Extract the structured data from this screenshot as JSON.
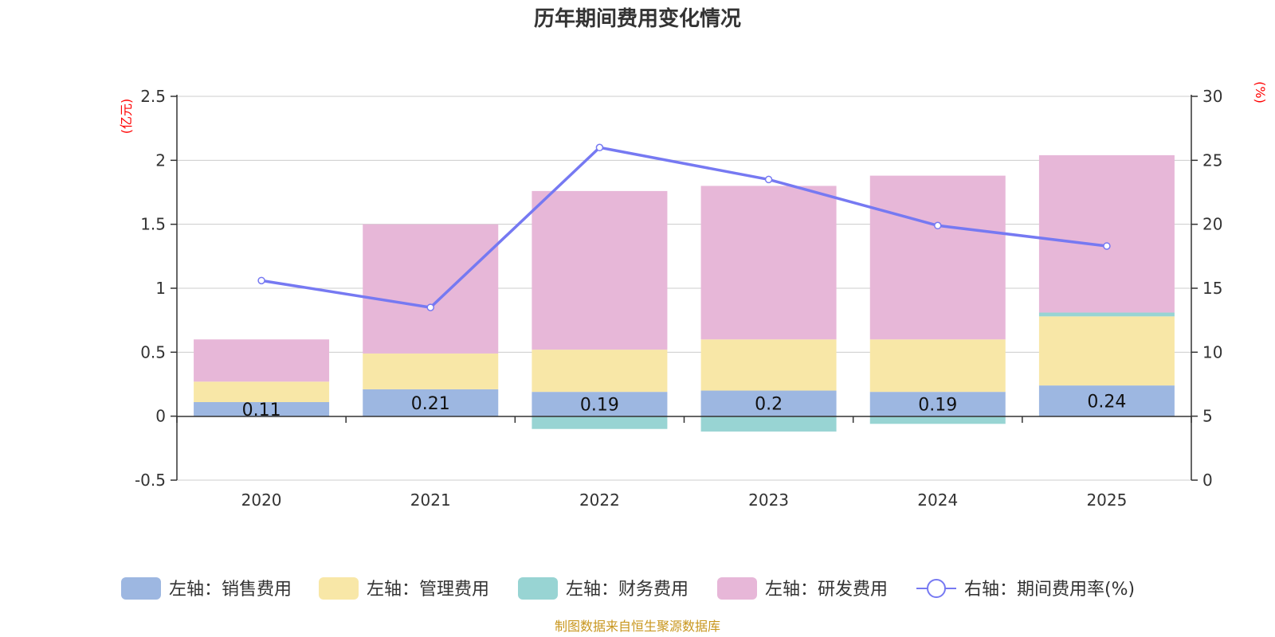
{
  "chart_data": {
    "type": "bar",
    "title": "历年期间费用变化情况",
    "categories": [
      "2020",
      "2021",
      "2022",
      "2023",
      "2024",
      "2025"
    ],
    "series": [
      {
        "name": "左轴：销售费用",
        "axis": "left",
        "type": "stacked-bar",
        "color": "#9db7e1",
        "values": [
          0.11,
          0.21,
          0.19,
          0.2,
          0.19,
          0.24
        ],
        "labels": [
          "0.11",
          "0.21",
          "0.19",
          "0.2",
          "0.19",
          "0.24"
        ]
      },
      {
        "name": "左轴：管理费用",
        "axis": "left",
        "type": "stacked-bar",
        "color": "#f8e7a7",
        "values": [
          0.16,
          0.28,
          0.33,
          0.4,
          0.41,
          0.54
        ]
      },
      {
        "name": "左轴：财务费用",
        "axis": "left",
        "type": "stacked-bar",
        "color": "#98d4d3",
        "values": [
          0.0,
          0.0,
          -0.1,
          -0.12,
          -0.06,
          0.03
        ]
      },
      {
        "name": "左轴：研发费用",
        "axis": "left",
        "type": "stacked-bar",
        "color": "#e7b7d8",
        "values": [
          0.33,
          1.01,
          1.24,
          1.2,
          1.28,
          1.23
        ]
      },
      {
        "name": "右轴：期间费用率(%)",
        "axis": "right",
        "type": "line",
        "color": "#7679f2",
        "values": [
          15.6,
          13.5,
          26.0,
          23.5,
          19.9,
          18.3
        ]
      }
    ],
    "left_axis": {
      "unit": "(亿元)",
      "ylim": [
        -0.5,
        2.5
      ],
      "ticks": [
        "-0.5",
        "0",
        "0.5",
        "1",
        "1.5",
        "2",
        "2.5"
      ]
    },
    "right_axis": {
      "unit": "(%)",
      "ylim": [
        0,
        30
      ],
      "ticks": [
        "0",
        "5",
        "10",
        "15",
        "20",
        "25",
        "30"
      ]
    },
    "grid": true,
    "legend_position": "bottom"
  },
  "source": "制图数据来自恒生聚源数据库"
}
